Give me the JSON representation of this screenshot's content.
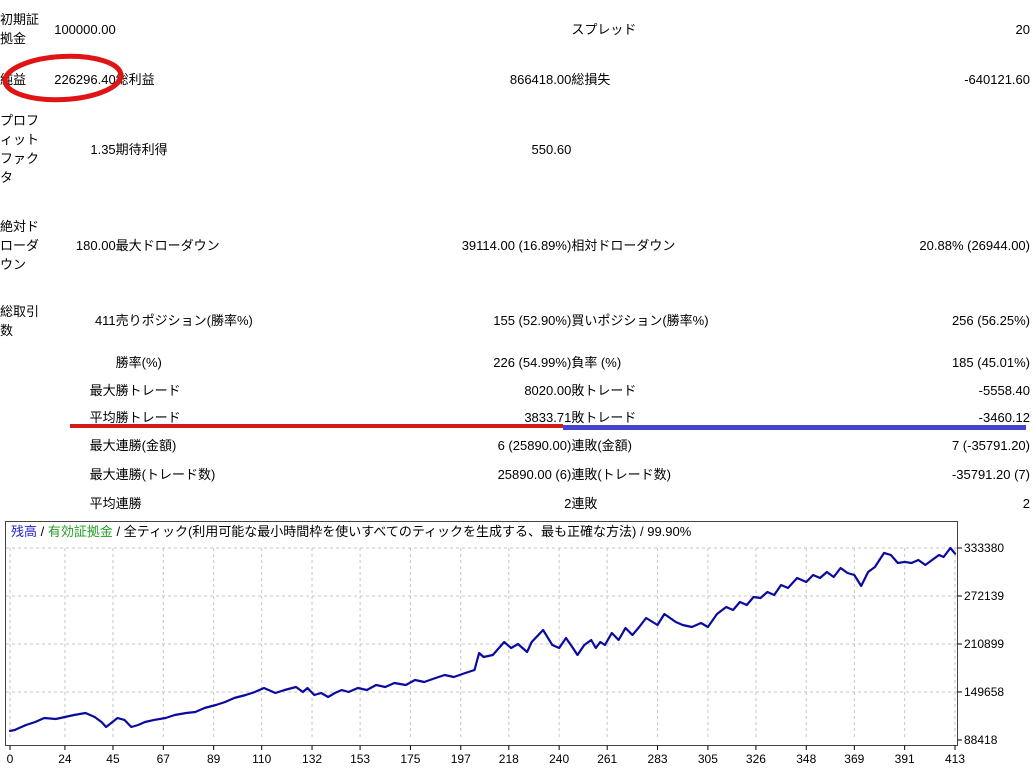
{
  "stats_table": {
    "rows": [
      {
        "c1": "初期証拠金",
        "c2": "100000.00",
        "c3": "",
        "c4": "",
        "c5": "スプレッド",
        "c6": "20"
      },
      {
        "c1": "純益",
        "c2": "226296.40",
        "c3": "総利益",
        "c4": "866418.00",
        "c5": "総損失",
        "c6": "-640121.60"
      },
      {
        "c1": "プロフィットファクタ",
        "c2": "1.35",
        "c3": "期待利得",
        "c4": "550.60",
        "c5": "",
        "c6": ""
      },
      {
        "c1": "絶対ドローダウン",
        "c2": "180.00",
        "c3": "最大ドローダウン",
        "c4": "39114.00 (16.89%)",
        "c5": "相対ドローダウン",
        "c6": "20.88% (26944.00)"
      },
      {
        "c1": "総取引数",
        "c2": "411",
        "c3": "売りポジション(勝率%)",
        "c4": "155 (52.90%)",
        "c5": "買いポジション(勝率%)",
        "c6": "256 (56.25%)"
      },
      {
        "c1": "",
        "c2": "",
        "c3": "勝率(%)",
        "c4": "226 (54.99%)",
        "c5": "負率 (%)",
        "c6": "185 (45.01%)"
      },
      {
        "c1": "",
        "c2": "最大",
        "c3": "勝トレード",
        "c4": "8020.00",
        "c5": "敗トレード",
        "c6": "-5558.40"
      },
      {
        "c1": "",
        "c2": "平均",
        "c3": "勝トレード",
        "c4": "3833.71",
        "c5": "敗トレード",
        "c6": "-3460.12"
      },
      {
        "c1": "",
        "c2": "最大",
        "c3": "連勝(金額)",
        "c4": "6 (25890.00)",
        "c5": "連敗(金額)",
        "c6": "7 (-35791.20)"
      },
      {
        "c1": "",
        "c2": "最大",
        "c3": "連勝(トレード数)",
        "c4": "25890.00 (6)",
        "c5": "連敗(トレード数)",
        "c6": "-35791.20 (7)"
      },
      {
        "c1": "",
        "c2": "平均",
        "c3": "連勝",
        "c4": "2",
        "c5": "連敗",
        "c6": "2"
      }
    ]
  },
  "annotations": {
    "ellipse_color": "#e01414",
    "red_underline_color": "#d21c1c",
    "blue_underline_color": "#4444cc"
  },
  "chart_data": {
    "type": "line",
    "title_segments": [
      {
        "text": "残高",
        "color": "#2222cc"
      },
      {
        "text": " / ",
        "color": "#000000"
      },
      {
        "text": "有効証拠金",
        "color": "#22a022"
      },
      {
        "text": " / ",
        "color": "#000000"
      },
      {
        "text": "全ティック(利用可能な最小時間枠を使いすべてのティックを生成する、最も正確な方法) / 99.90%",
        "color": "#000000"
      }
    ],
    "xlabel": "",
    "ylabel": "",
    "xlim": [
      0,
      413
    ],
    "ylim": [
      88418,
      333380
    ],
    "x_ticks": [
      0,
      24,
      45,
      67,
      89,
      110,
      132,
      153,
      175,
      197,
      218,
      240,
      261,
      283,
      305,
      326,
      348,
      369,
      391,
      413
    ],
    "y_ticks": [
      88418,
      149658,
      210899,
      272139,
      333380
    ],
    "grid": "dashed",
    "legend_position": "none",
    "line_color": "#0a0a9e",
    "series": [
      {
        "name": "残高",
        "x": [
          0,
          2,
          7,
          11,
          15,
          20,
          24,
          28,
          33,
          37,
          40,
          42,
          47,
          50,
          53,
          56,
          59,
          63,
          68,
          72,
          77,
          81,
          85,
          90,
          94,
          98,
          103,
          107,
          111,
          116,
          120,
          125,
          128,
          130,
          133,
          136,
          139,
          142,
          145,
          148,
          152,
          156,
          160,
          164,
          168,
          173,
          177,
          181,
          186,
          190,
          194,
          199,
          203,
          205,
          207,
          211,
          216,
          219,
          222,
          226,
          228,
          233,
          237,
          240,
          243,
          246,
          248,
          251,
          254,
          256,
          258,
          260,
          263,
          266,
          269,
          272,
          275,
          278,
          283,
          286,
          291,
          294,
          298,
          302,
          305,
          309,
          313,
          316,
          319,
          322,
          325,
          328,
          331,
          334,
          337,
          340,
          344,
          348,
          351,
          354,
          357,
          360,
          363,
          366,
          369,
          372,
          375,
          378,
          382,
          385,
          388,
          391,
          394,
          397,
          400,
          403,
          406,
          408,
          411,
          413
        ],
        "y": [
          100000,
          101200,
          107500,
          111400,
          116500,
          115200,
          117800,
          120300,
          122900,
          117800,
          111400,
          105000,
          116500,
          114000,
          105000,
          107600,
          111400,
          114000,
          116500,
          120300,
          122900,
          124100,
          129300,
          133100,
          136900,
          142000,
          145800,
          149700,
          154800,
          148400,
          152200,
          156000,
          149700,
          154800,
          145800,
          148400,
          143300,
          148400,
          152200,
          149700,
          154800,
          152200,
          158600,
          156000,
          161200,
          158600,
          165000,
          162400,
          167500,
          171400,
          168800,
          173900,
          177700,
          199400,
          194300,
          196900,
          213500,
          205800,
          210900,
          200700,
          213500,
          228800,
          209600,
          205800,
          218600,
          205800,
          196900,
          209600,
          216000,
          205800,
          213500,
          209600,
          224900,
          216000,
          231300,
          222400,
          232600,
          244100,
          235100,
          249200,
          239000,
          235100,
          232600,
          237700,
          232600,
          249200,
          258100,
          254300,
          264500,
          260700,
          270900,
          269600,
          277300,
          273400,
          286200,
          282400,
          295100,
          290000,
          298900,
          295100,
          302800,
          296400,
          307900,
          301500,
          298900,
          284900,
          302800,
          309200,
          327100,
          324500,
          314300,
          315600,
          314300,
          318100,
          311700,
          318100,
          324500,
          321900,
          333380,
          326296.4
        ]
      }
    ]
  }
}
